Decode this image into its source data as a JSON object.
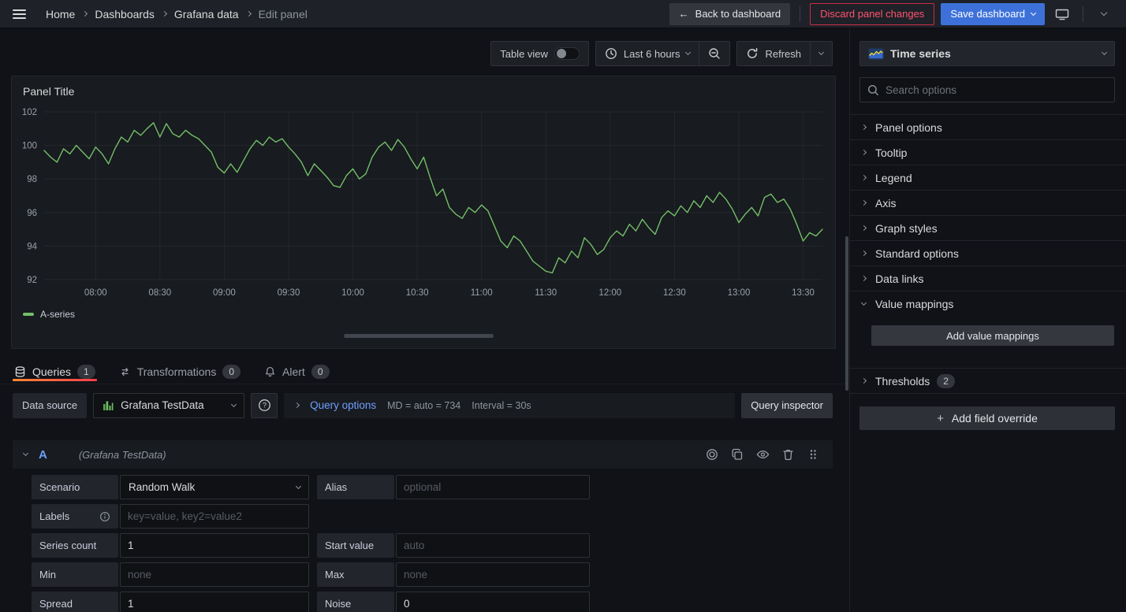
{
  "topnav": {
    "breadcrumbs": [
      "Home",
      "Dashboards",
      "Grafana data",
      "Edit panel"
    ],
    "back_button": "Back to dashboard",
    "discard_button": "Discard panel changes",
    "save_button": "Save dashboard"
  },
  "toolbar": {
    "table_view_label": "Table view",
    "table_view_on": false,
    "time_range": "Last 6 hours",
    "refresh_label": "Refresh"
  },
  "panel": {
    "title": "Panel Title",
    "legend": "A-series",
    "chart_data": {
      "type": "line",
      "title": "Panel Title",
      "legend_position": "bottom-left",
      "grid": true,
      "line_color": "#73BF69",
      "ylim": [
        92,
        102
      ],
      "y_ticks": [
        102,
        100,
        98,
        96,
        94,
        92
      ],
      "x_ticks": [
        "08:00",
        "08:30",
        "09:00",
        "09:30",
        "10:00",
        "10:30",
        "11:00",
        "11:30",
        "12:00",
        "12:30",
        "13:00",
        "13:30"
      ],
      "x_tick_indices": [
        8,
        18,
        28,
        38,
        48,
        58,
        68,
        78,
        88,
        98,
        108,
        118
      ],
      "series": [
        {
          "name": "A-series",
          "values": [
            99.7,
            99.3,
            99.0,
            99.8,
            99.5,
            100.0,
            99.6,
            99.2,
            99.9,
            99.5,
            98.9,
            99.8,
            100.5,
            100.2,
            100.9,
            100.6,
            101.0,
            101.35,
            100.5,
            101.3,
            100.7,
            100.5,
            100.9,
            100.6,
            100.4,
            100.0,
            99.6,
            98.7,
            98.35,
            98.9,
            98.4,
            99.1,
            99.8,
            100.3,
            100.0,
            100.5,
            100.2,
            100.4,
            99.9,
            99.5,
            99.0,
            98.2,
            98.9,
            98.5,
            98.1,
            97.6,
            97.5,
            98.2,
            98.6,
            98.0,
            98.3,
            99.3,
            99.9,
            100.2,
            99.7,
            100.35,
            99.9,
            99.2,
            98.6,
            99.3,
            98.1,
            97.0,
            97.4,
            96.3,
            95.9,
            95.65,
            96.3,
            96.0,
            96.45,
            96.1,
            95.2,
            94.3,
            93.9,
            94.6,
            94.3,
            93.7,
            93.1,
            92.8,
            92.5,
            92.4,
            93.3,
            93.0,
            93.7,
            93.3,
            94.5,
            94.1,
            93.5,
            93.8,
            94.5,
            94.9,
            94.6,
            95.3,
            94.9,
            95.6,
            95.1,
            94.7,
            95.7,
            96.1,
            95.8,
            96.4,
            96.0,
            96.7,
            96.3,
            97.0,
            96.6,
            97.2,
            96.8,
            96.2,
            95.4,
            95.9,
            96.3,
            95.8,
            96.9,
            97.1,
            96.6,
            96.8,
            96.2,
            95.3,
            94.3,
            94.8,
            94.6,
            95.0
          ]
        }
      ]
    }
  },
  "query_tabs": [
    {
      "label": "Queries",
      "count": "1"
    },
    {
      "label": "Transformations",
      "count": "0"
    },
    {
      "label": "Alert",
      "count": "0"
    }
  ],
  "datasource_row": {
    "label": "Data source",
    "value": "Grafana TestData",
    "query_options_label": "Query options",
    "md_text": "MD = auto = 734",
    "interval_text": "Interval = 30s",
    "inspector_button": "Query inspector"
  },
  "query": {
    "ref_id": "A",
    "ds_hint": "(Grafana TestData)",
    "rows": [
      {
        "left": {
          "name": "scenario-select",
          "label": "Scenario",
          "type": "select",
          "value": "Random Walk"
        },
        "right": {
          "name": "alias-input",
          "label": "Alias",
          "placeholder": "optional"
        }
      },
      {
        "left": {
          "name": "labels-input",
          "label": "Labels",
          "info": true,
          "placeholder": "key=value, key2=value2"
        },
        "right": null
      },
      {
        "left": {
          "name": "series-count-input",
          "label": "Series count",
          "value": "1"
        },
        "right": {
          "name": "start-value-input",
          "label": "Start value",
          "placeholder": "auto"
        }
      },
      {
        "left": {
          "name": "min-input",
          "label": "Min",
          "placeholder": "none"
        },
        "right": {
          "name": "max-input",
          "label": "Max",
          "placeholder": "none"
        }
      },
      {
        "left": {
          "name": "spread-input",
          "label": "Spread",
          "value": "1"
        },
        "right": {
          "name": "noise-input",
          "label": "Noise",
          "value": "0"
        }
      }
    ]
  },
  "options_pane": {
    "viz_name": "Time series",
    "search_placeholder": "Search options",
    "sections": [
      {
        "label": "Panel options"
      },
      {
        "label": "Tooltip"
      },
      {
        "label": "Legend"
      },
      {
        "label": "Axis"
      },
      {
        "label": "Graph styles"
      },
      {
        "label": "Standard options"
      },
      {
        "label": "Data links"
      },
      {
        "label": "Value mappings",
        "expanded": true,
        "action": "Add value mappings"
      },
      {
        "label": "Thresholds",
        "badge": "2"
      }
    ],
    "add_override_button": "Add field override"
  }
}
